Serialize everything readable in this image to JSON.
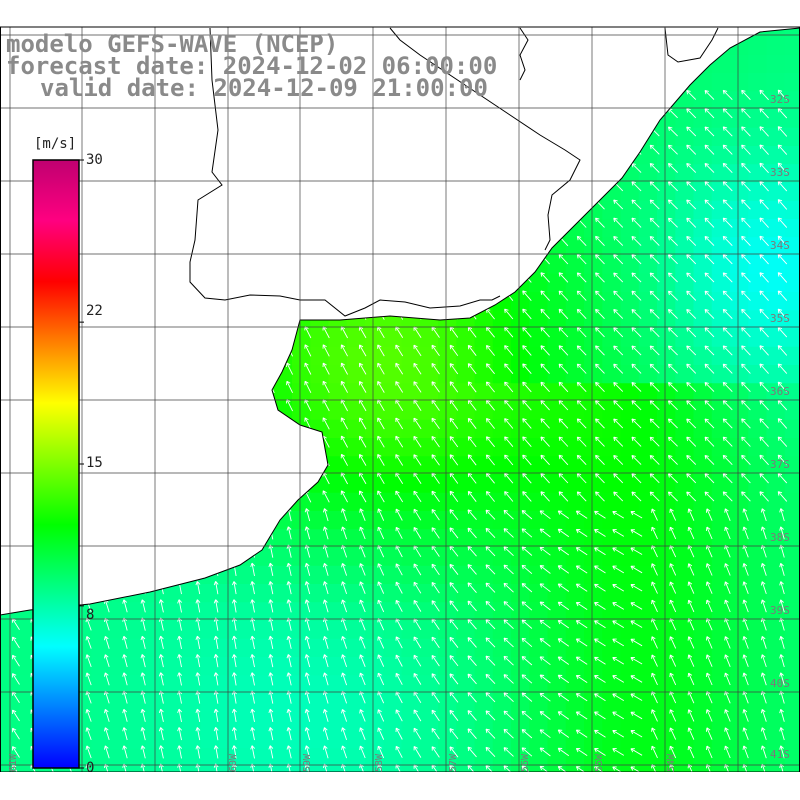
{
  "title": {
    "line1": "modelo GEFS-WAVE (NCEP)",
    "line2": "forecast date: 2024-12-02 06:00:00",
    "line3": "valid date: 2024-12-09 21:00:00"
  },
  "colorbar": {
    "unit": "[m/s]",
    "ticks": [
      "30",
      "22",
      "15",
      "8",
      "0"
    ],
    "tick_values": [
      30,
      22,
      15,
      8,
      0
    ],
    "min": 0,
    "max": 30,
    "colors": [
      "#0000ff",
      "#0080ff",
      "#00ffff",
      "#00ff80",
      "#00ff00",
      "#80ff00",
      "#ffff00",
      "#ff8000",
      "#ff0000",
      "#ff0080",
      "#c00070"
    ]
  },
  "lat_labels": [
    "32S",
    "33S",
    "34S",
    "35S",
    "36S",
    "37S",
    "38S",
    "39S",
    "40S",
    "41S"
  ],
  "lon_labels": [
    "61W",
    "60W",
    "59W",
    "58W",
    "57W",
    "56W",
    "55W",
    "54W"
  ],
  "colors": {
    "land": "#ffffff",
    "coast": "#000000",
    "grid": "#404040",
    "arrow": "#ffffff",
    "title": "#8a8a8a"
  },
  "map_data": {
    "field": "wind speed",
    "units": "m/s",
    "prevailing_direction": "from southeast"
  }
}
